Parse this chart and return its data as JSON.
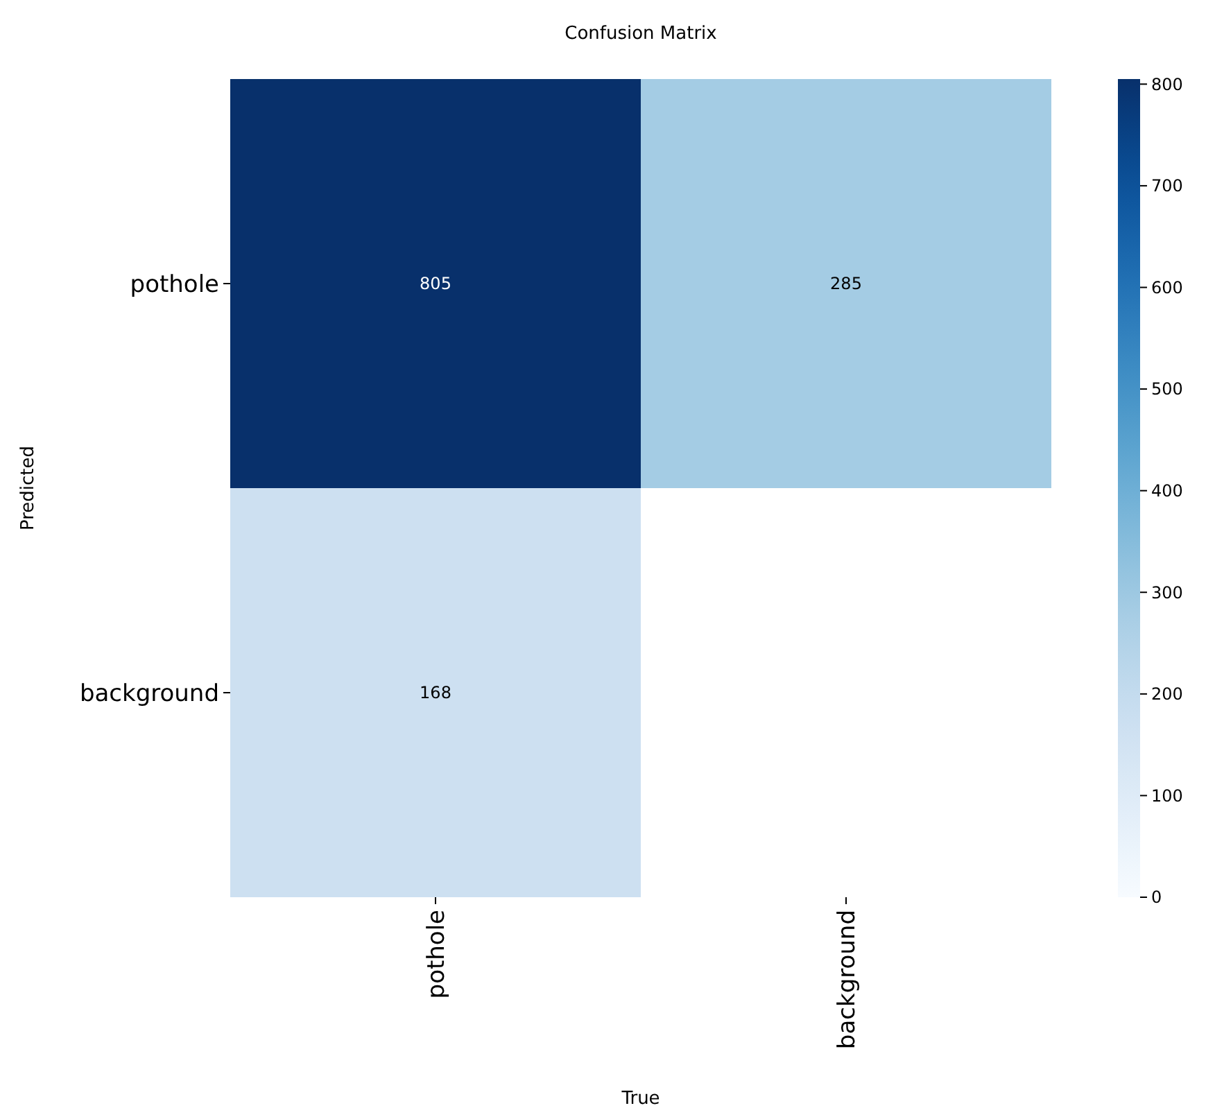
{
  "chart_data": {
    "type": "heatmap",
    "title": "Confusion Matrix",
    "xlabel": "True",
    "ylabel": "Predicted",
    "categories": [
      "pothole",
      "background"
    ],
    "y_categories": [
      "pothole",
      "background"
    ],
    "cells": [
      [
        805,
        285
      ],
      [
        168,
        null
      ]
    ],
    "data_labels": true,
    "clim": [
      0,
      805
    ],
    "cticks": [
      0,
      100,
      200,
      300,
      400,
      500,
      600,
      700,
      800
    ]
  }
}
